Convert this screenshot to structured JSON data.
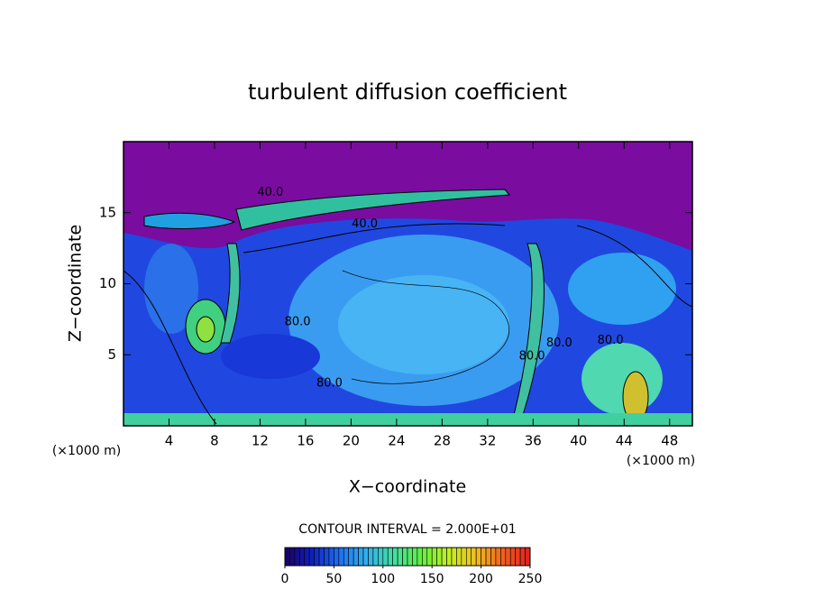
{
  "chart_data": {
    "type": "contour",
    "title": "turbulent diffusion coefficient",
    "xlabel": "X−coordinate",
    "ylabel": "Z−coordinate",
    "xunit": "(×1000 m)",
    "yunit": "(×1000 m)",
    "xlim": [
      0,
      50
    ],
    "ylim": [
      0,
      20
    ],
    "xticks": [
      4,
      8,
      12,
      16,
      20,
      24,
      28,
      32,
      36,
      40,
      44,
      48
    ],
    "yticks": [
      5,
      10,
      15
    ],
    "annotations": [
      {
        "text": "40.0",
        "x": 12.9,
        "y": 16.4
      },
      {
        "text": "40.0",
        "x": 21.2,
        "y": 14.2
      },
      {
        "text": "80.0",
        "x": 15.3,
        "y": 7.3
      },
      {
        "text": "80.0",
        "x": 18.1,
        "y": 3.0
      },
      {
        "text": "80.0",
        "x": 35.9,
        "y": 4.9
      },
      {
        "text": "80.0",
        "x": 38.3,
        "y": 5.8
      },
      {
        "text": "80.0",
        "x": 42.8,
        "y": 6.0
      }
    ],
    "colorbar": {
      "title": "CONTOUR INTERVAL = 2.000E+01",
      "lim": [
        0,
        250
      ],
      "ticks": [
        0,
        50,
        100,
        150,
        200,
        250
      ],
      "colormap": [
        "#1a0060",
        "#1020c0",
        "#2070f0",
        "#30b0f0",
        "#40e0a0",
        "#60f040",
        "#c0f020",
        "#f0c020",
        "#f06020",
        "#e02020"
      ]
    }
  }
}
